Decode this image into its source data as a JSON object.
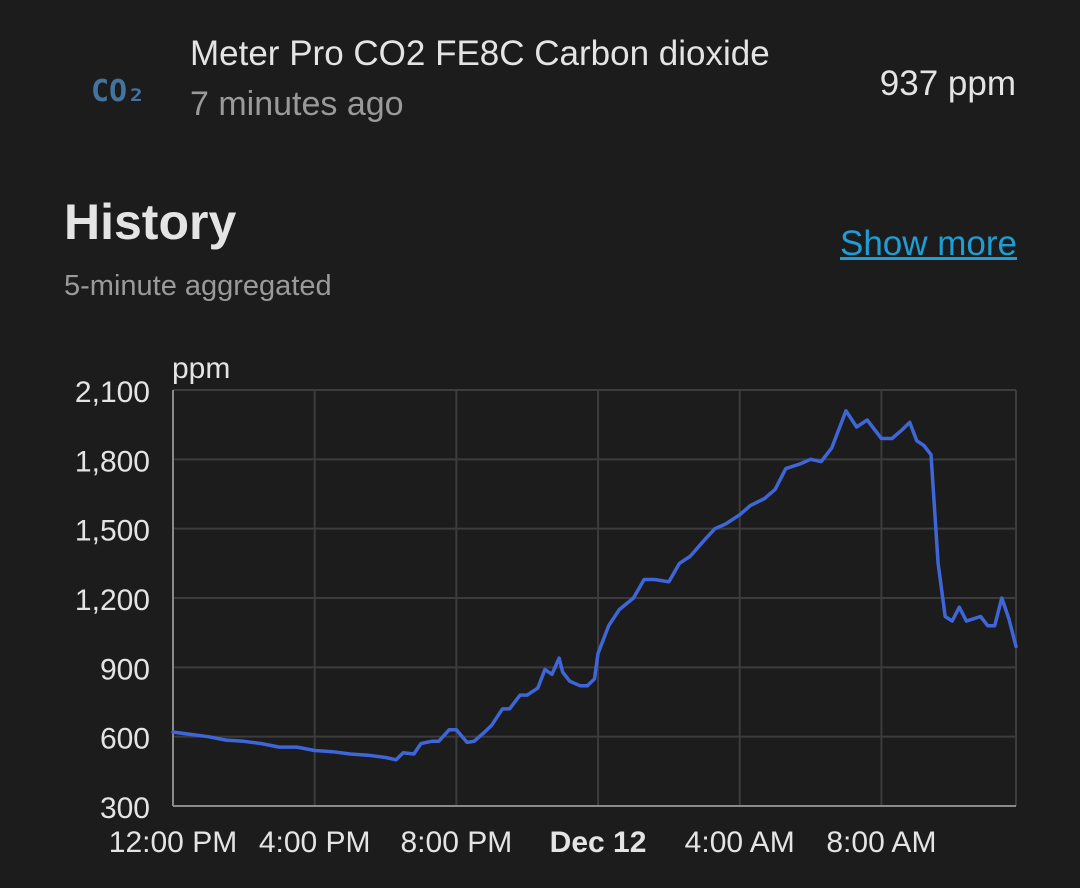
{
  "entity": {
    "name": "Meter Pro CO2 FE8C Carbon dioxide",
    "last_changed": "7 minutes ago",
    "state": "937 ppm",
    "icon": "molecule-co2-icon",
    "icon_text": "CO₂",
    "icon_color": "#44739e"
  },
  "history": {
    "title": "History",
    "subtitle": "5-minute aggregated",
    "show_more_label": "Show more",
    "link_color": "#1e9ed4"
  },
  "chart_data": {
    "type": "line",
    "ylabel": "ppm",
    "ylim": [
      300,
      2100
    ],
    "yticks": [
      300,
      600,
      900,
      1200,
      1500,
      1800,
      2100
    ],
    "ytick_labels": [
      "300",
      "600",
      "900",
      "1,200",
      "1,500",
      "1,800",
      "2,100"
    ],
    "xlim": [
      12,
      35.8
    ],
    "xticks": [
      12,
      16,
      20,
      24,
      28,
      32
    ],
    "xtick_labels": [
      "12:00 PM",
      "4:00 PM",
      "8:00 PM",
      "Dec 12",
      "4:00 AM",
      "8:00 AM"
    ],
    "xtick_bold": [
      false,
      false,
      false,
      true,
      false,
      false
    ],
    "grid": true,
    "line_color": "#3f66d8",
    "series": [
      {
        "x": [
          12.0,
          12.5,
          13.0,
          13.5,
          14.0,
          14.5,
          15.0,
          15.5,
          16.0,
          16.5,
          17.0,
          17.5,
          18.0,
          18.3,
          18.5,
          18.8,
          19.0,
          19.3,
          19.5,
          19.8,
          20.0,
          20.3,
          20.5,
          20.8,
          21.0,
          21.3,
          21.5,
          21.8,
          22.0,
          22.3,
          22.5,
          22.7,
          22.9,
          23.0,
          23.2,
          23.5,
          23.7,
          23.9,
          24.0,
          24.3,
          24.6,
          25.0,
          25.3,
          25.6,
          26.0,
          26.3,
          26.6,
          27.0,
          27.3,
          27.6,
          28.0,
          28.3,
          28.7,
          29.0,
          29.3,
          29.7,
          30.0,
          30.3,
          30.6,
          31.0,
          31.3,
          31.6,
          32.0,
          32.3,
          32.6,
          32.8,
          33.0,
          33.2,
          33.4,
          33.6,
          33.8,
          34.0,
          34.2,
          34.4,
          34.8,
          35.0,
          35.2,
          35.4,
          35.6,
          35.8
        ],
        "y": [
          620,
          610,
          600,
          585,
          580,
          570,
          555,
          555,
          540,
          535,
          525,
          520,
          510,
          500,
          530,
          525,
          570,
          580,
          580,
          630,
          630,
          575,
          580,
          620,
          650,
          720,
          720,
          780,
          780,
          810,
          890,
          870,
          940,
          880,
          840,
          820,
          820,
          850,
          960,
          1080,
          1150,
          1200,
          1280,
          1280,
          1270,
          1350,
          1380,
          1450,
          1500,
          1520,
          1560,
          1600,
          1630,
          1670,
          1760,
          1780,
          1800,
          1790,
          1850,
          2010,
          1940,
          1970,
          1890,
          1890,
          1930,
          1960,
          1880,
          1860,
          1820,
          1350,
          1120,
          1100,
          1160,
          1100,
          1120,
          1080,
          1080,
          1200,
          1110,
          990
        ]
      }
    ]
  }
}
